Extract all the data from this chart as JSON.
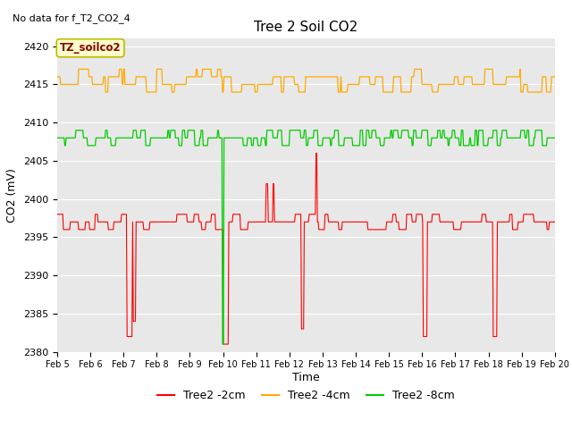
{
  "title": "Tree 2 Soil CO2",
  "no_data_text": "No data for f_T2_CO2_4",
  "ylabel": "CO2 (mV)",
  "xlabel": "Time",
  "ylim": [
    2380,
    2421
  ],
  "yticks": [
    2380,
    2385,
    2390,
    2395,
    2400,
    2405,
    2410,
    2415,
    2420
  ],
  "x_tick_labels": [
    "Feb 5",
    "Feb 6",
    "Feb 7",
    "Feb 8",
    "Feb 9",
    "Feb 10",
    "Feb 11",
    "Feb 12",
    "Feb 13",
    "Feb 14",
    "Feb 15",
    "Feb 16",
    "Feb 17",
    "Feb 18",
    "Feb 19",
    "Feb 20"
  ],
  "background_color": "#e8e8e8",
  "colors": {
    "red": "#ff0000",
    "orange": "#ffaa00",
    "green": "#00cc00"
  },
  "legend_entries": [
    "Tree2 -2cm",
    "Tree2 -4cm",
    "Tree2 -8cm"
  ],
  "annotation_box_text": "TZ_soilco2",
  "annotation_box_color": "#ffffcc",
  "annotation_box_edge": "#bbbb00"
}
